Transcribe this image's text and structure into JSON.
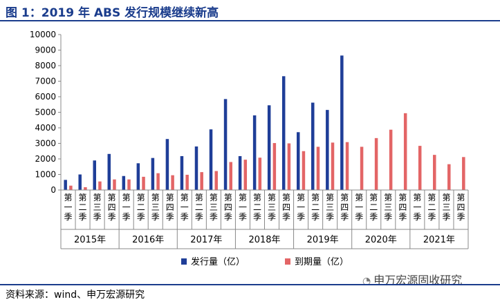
{
  "header": {
    "title": "图 1：2019 年 ABS 发行规模继续新高"
  },
  "footer": {
    "source": "资料来源：wind、申万宏源研究",
    "watermark": "申万宏源固收研究"
  },
  "chart_data": {
    "type": "bar",
    "title": "图 1：2019 年 ABS 发行规模继续新高",
    "ylim": [
      0,
      10000
    ],
    "yticks": [
      0,
      1000,
      2000,
      3000,
      4000,
      5000,
      6000,
      7000,
      8000,
      9000,
      10000
    ],
    "quarter_labels": [
      "第一季",
      "第二季",
      "第三季",
      "第四季"
    ],
    "years": [
      "2015年",
      "2016年",
      "2017年",
      "2018年",
      "2019年",
      "2020年",
      "2021年"
    ],
    "categories": [
      "2015年第一季",
      "2015年第二季",
      "2015年第三季",
      "2015年第四季",
      "2016年第一季",
      "2016年第二季",
      "2016年第三季",
      "2016年第四季",
      "2017年第一季",
      "2017年第二季",
      "2017年第三季",
      "2017年第四季",
      "2018年第一季",
      "2018年第二季",
      "2018年第三季",
      "2018年第四季",
      "2019年第一季",
      "2019年第二季",
      "2019年第三季",
      "2019年第四季",
      "2020年第一季",
      "2020年第二季",
      "2020年第三季",
      "2020年第四季",
      "2021年第一季",
      "2021年第二季",
      "2021年第三季",
      "2021年第四季"
    ],
    "series": [
      {
        "name": "发行量（亿）",
        "color": "#1f3e98",
        "values": [
          650,
          1000,
          1900,
          2320,
          900,
          1720,
          2060,
          3280,
          2180,
          2800,
          3900,
          5850,
          2180,
          4800,
          5450,
          7320,
          3720,
          5620,
          5150,
          8650,
          null,
          null,
          null,
          null,
          null,
          null,
          null,
          null
        ]
      },
      {
        "name": "到期量（亿）",
        "color": "#e36566",
        "values": [
          280,
          180,
          550,
          680,
          680,
          850,
          1080,
          950,
          980,
          1150,
          1220,
          1800,
          1950,
          2080,
          3020,
          3000,
          2500,
          2780,
          3050,
          3080,
          2780,
          3340,
          3880,
          4940,
          2840,
          2260,
          1660,
          2120
        ]
      }
    ],
    "legend_position": "bottom"
  }
}
